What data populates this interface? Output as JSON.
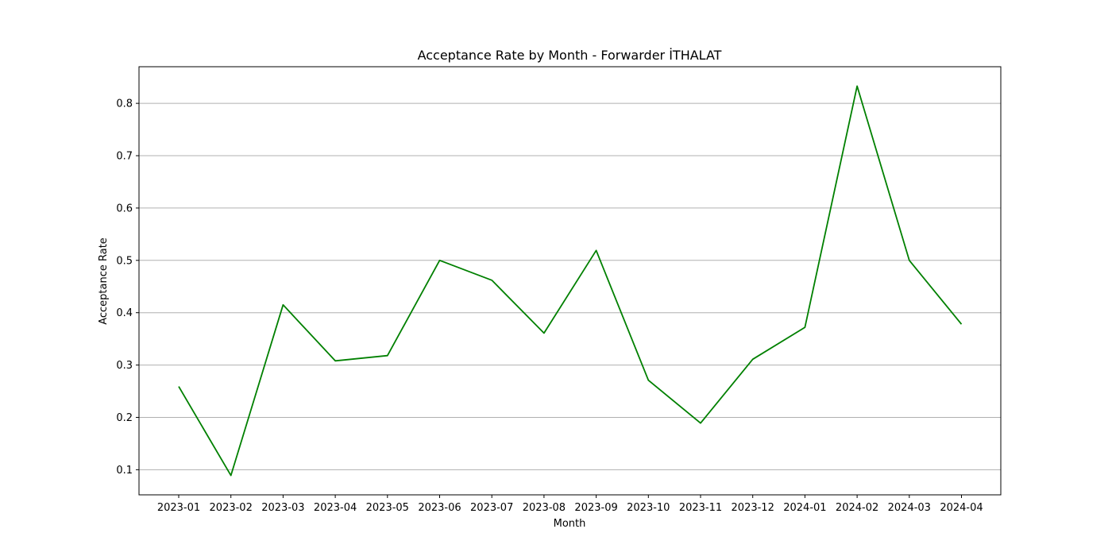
{
  "chart_data": {
    "type": "line",
    "title": "Acceptance Rate by Month - Forwarder İTHALAT",
    "xlabel": "Month",
    "ylabel": "Acceptance Rate",
    "categories": [
      "2023-01",
      "2023-02",
      "2023-03",
      "2023-04",
      "2023-05",
      "2023-06",
      "2023-07",
      "2023-08",
      "2023-09",
      "2023-10",
      "2023-11",
      "2023-12",
      "2024-01",
      "2024-02",
      "2024-03",
      "2024-04"
    ],
    "series": [
      {
        "color": "#008000",
        "values": [
          0.259,
          0.089,
          0.415,
          0.308,
          0.318,
          0.5,
          0.462,
          0.361,
          0.519,
          0.271,
          0.189,
          0.311,
          0.372,
          0.833,
          0.5,
          0.378
        ]
      }
    ],
    "yticks": [
      0.1,
      0.2,
      0.3,
      0.4,
      0.5,
      0.6,
      0.7,
      0.8
    ],
    "ylim": [
      0.052,
      0.87
    ],
    "grid": "y"
  }
}
